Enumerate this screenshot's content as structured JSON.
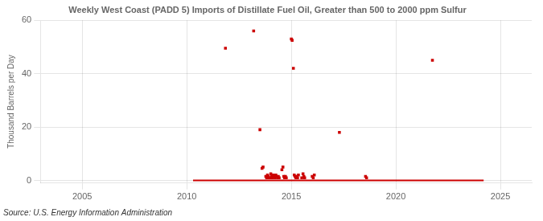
{
  "chart_data": {
    "type": "scatter",
    "title": "Weekly West Coast (PADD 5) Imports of Distillate Fuel Oil, Greater than 500 to 2000 ppm Sulfur",
    "y_label": "Thousand Barrels per Day",
    "annotations": [
      "Source: U.S. Energy Information Administration"
    ],
    "xlim": [
      2003.0,
      2026.5
    ],
    "ylim": [
      -1,
      60
    ],
    "xticks": [
      2005,
      2010,
      2015,
      2020,
      2025
    ],
    "yticks": [
      0,
      20,
      40,
      60
    ],
    "grid": true,
    "series": [
      {
        "type": "scatter",
        "marker": "square",
        "color": "#cc0000",
        "x": [
          2011.85,
          2013.2,
          2013.5,
          2013.6,
          2013.65,
          2013.78,
          2013.82,
          2013.86,
          2013.9,
          2013.94,
          2013.98,
          2014.02,
          2014.06,
          2014.1,
          2014.14,
          2014.18,
          2014.22,
          2014.26,
          2014.3,
          2014.34,
          2014.38,
          2014.42,
          2014.55,
          2014.6,
          2014.64,
          2014.68,
          2014.72,
          2014.76,
          2015.0,
          2015.04,
          2015.1,
          2015.14,
          2015.18,
          2015.22,
          2015.26,
          2015.3,
          2015.34,
          2015.5,
          2015.56,
          2015.6,
          2015.64,
          2016.0,
          2016.05,
          2016.1,
          2017.3,
          2018.55,
          2018.6,
          2021.75
        ],
        "values": [
          49.5,
          56.0,
          19.0,
          4.5,
          5.0,
          1.5,
          1.0,
          2.0,
          1.5,
          1.0,
          1.0,
          2.5,
          1.5,
          1.0,
          2.0,
          1.5,
          1.0,
          2.0,
          1.5,
          1.0,
          1.5,
          1.0,
          4.0,
          5.0,
          1.5,
          1.0,
          1.5,
          1.0,
          53.0,
          52.5,
          42.0,
          2.0,
          1.5,
          1.0,
          1.5,
          1.0,
          2.0,
          1.0,
          2.5,
          1.5,
          1.0,
          1.5,
          1.0,
          2.0,
          18.0,
          1.5,
          1.0,
          45.0
        ]
      },
      {
        "type": "line",
        "line_style": "solid",
        "color": "#cc0000",
        "x": [
          2010.3,
          2024.2
        ],
        "values": [
          0,
          0
        ]
      }
    ]
  }
}
